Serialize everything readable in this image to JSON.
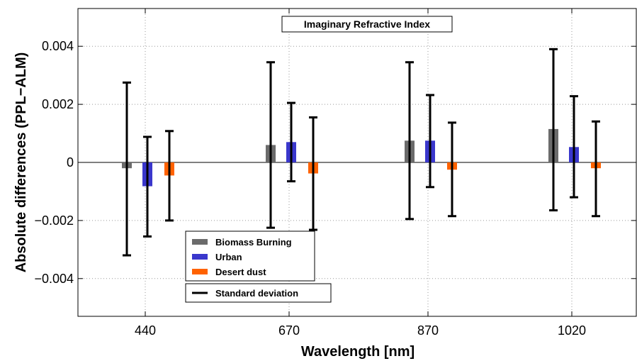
{
  "chart_data": {
    "type": "bar",
    "title": "Imaginary Refractive Index",
    "xlabel": "Wavelength [nm]",
    "ylabel": "Absolute differences (PPL−ALM)",
    "categories": [
      "440",
      "670",
      "870",
      "1020"
    ],
    "ylim": [
      -0.0053,
      0.0053
    ],
    "yticks": [
      -0.004,
      -0.002,
      0,
      0.002,
      0.004
    ],
    "ytick_labels": [
      "−0.004",
      "−0.002",
      "0",
      "0.002",
      "0.004"
    ],
    "grid": true,
    "legend_position": "bottom-left",
    "series": [
      {
        "name": "Biomass Burning",
        "color": "#6b6b6b",
        "values": [
          -0.0002,
          0.0006,
          0.00075,
          0.00115
        ],
        "error_upper": [
          0.00275,
          0.00345,
          0.00345,
          0.0039
        ],
        "error_lower": [
          -0.0032,
          -0.00225,
          -0.00195,
          -0.00165
        ]
      },
      {
        "name": "Urban",
        "color": "#3a37cc",
        "values": [
          -0.00082,
          0.0007,
          0.00075,
          0.00053
        ],
        "error_upper": [
          0.00088,
          0.00205,
          0.00232,
          0.00228
        ],
        "error_lower": [
          -0.00255,
          -0.00065,
          -0.00085,
          -0.0012
        ]
      },
      {
        "name": "Desert dust",
        "color": "#ff6200",
        "values": [
          -0.00045,
          -0.00038,
          -0.00025,
          -0.0002
        ],
        "error_upper": [
          0.00108,
          0.00155,
          0.00137,
          0.00141
        ],
        "error_lower": [
          -0.002,
          -0.00232,
          -0.00185,
          -0.00185
        ]
      }
    ],
    "error_legend_label": "Standard deviation"
  }
}
